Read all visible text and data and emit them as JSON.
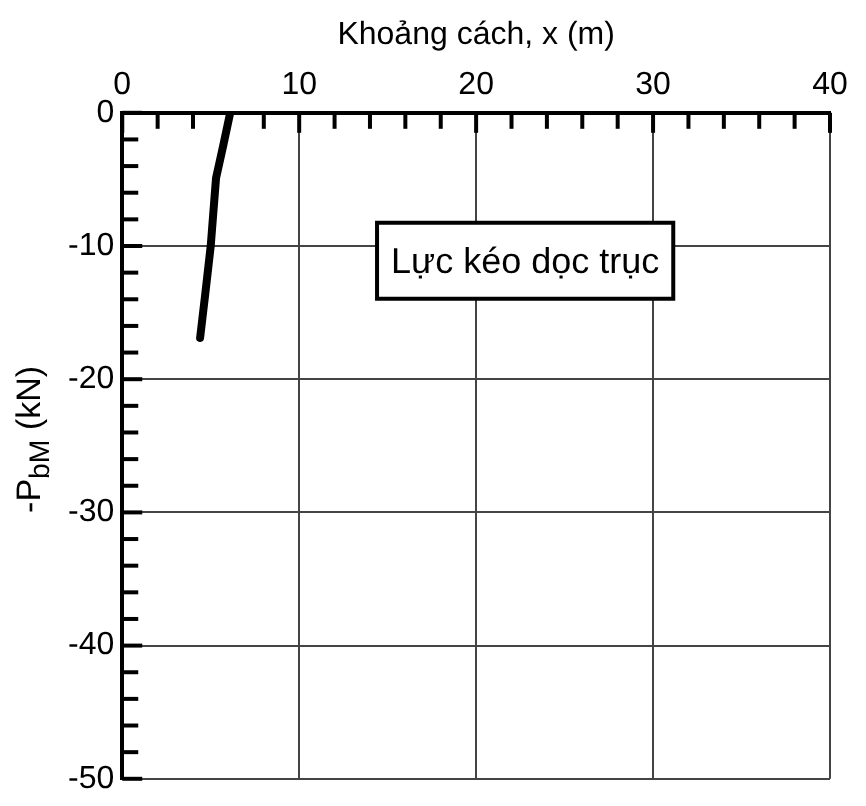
{
  "chart_data": {
    "type": "line",
    "xlabel": "Khoảng cách, x (m)",
    "ylabel": "-P$_{bM}$ (kN)",
    "annotations": [
      "Lực kéo dọc trục"
    ],
    "x": [
      6.1,
      5.7,
      5.3,
      5.0,
      4.7,
      4.4
    ],
    "series": [
      {
        "color": "#000000",
        "values": [
          0,
          -2.5,
          -4.9,
          -10,
          -13.5,
          -16.9
        ]
      }
    ],
    "xlim": [
      0,
      40
    ],
    "xticks": [
      0,
      {
        "value": 2,
        "label": null
      },
      {
        "value": 4,
        "label": null
      },
      {
        "value": 6,
        "label": null
      },
      {
        "value": 8,
        "label": null
      },
      10,
      {
        "value": 12,
        "label": null
      },
      {
        "value": 14,
        "label": null
      },
      {
        "value": 16,
        "label": null
      },
      {
        "value": 18,
        "label": null
      },
      20,
      {
        "value": 22,
        "label": null
      },
      {
        "value": 24,
        "label": null
      },
      {
        "value": 26,
        "label": null
      },
      {
        "value": 28,
        "label": null
      },
      30,
      {
        "value": 32,
        "label": null
      },
      {
        "value": 34,
        "label": null
      },
      {
        "value": 36,
        "label": null
      },
      {
        "value": 38,
        "label": null
      },
      40
    ],
    "ylim": [
      -50,
      0
    ],
    "yticks": [
      {
        "value": -50,
        "label": "-50"
      },
      {
        "value": -48,
        "label": null
      },
      {
        "value": -46,
        "label": null
      },
      {
        "value": -44,
        "label": null
      },
      {
        "value": -42,
        "label": null
      },
      {
        "value": -40,
        "label": "-40"
      },
      {
        "value": -38,
        "label": null
      },
      {
        "value": -36,
        "label": null
      },
      {
        "value": -34,
        "label": null
      },
      {
        "value": -32,
        "label": null
      },
      {
        "value": -30,
        "label": "-30"
      },
      {
        "value": -28,
        "label": null
      },
      {
        "value": -26,
        "label": null
      },
      {
        "value": -24,
        "label": null
      },
      {
        "value": -22,
        "label": null
      },
      {
        "value": -20,
        "label": "-20"
      },
      {
        "value": -18,
        "label": null
      },
      {
        "value": -16,
        "label": null
      },
      {
        "value": -14,
        "label": null
      },
      {
        "value": -12,
        "label": null
      },
      {
        "value": -10,
        "label": "-10"
      },
      {
        "value": -8,
        "label": null
      },
      {
        "value": -6,
        "label": null
      },
      {
        "value": -4,
        "label": null
      },
      {
        "value": -2,
        "label": null
      },
      0
    ],
    "grid": true,
    "legend": false,
    "marker": "none",
    "line_style": "solid"
  }
}
